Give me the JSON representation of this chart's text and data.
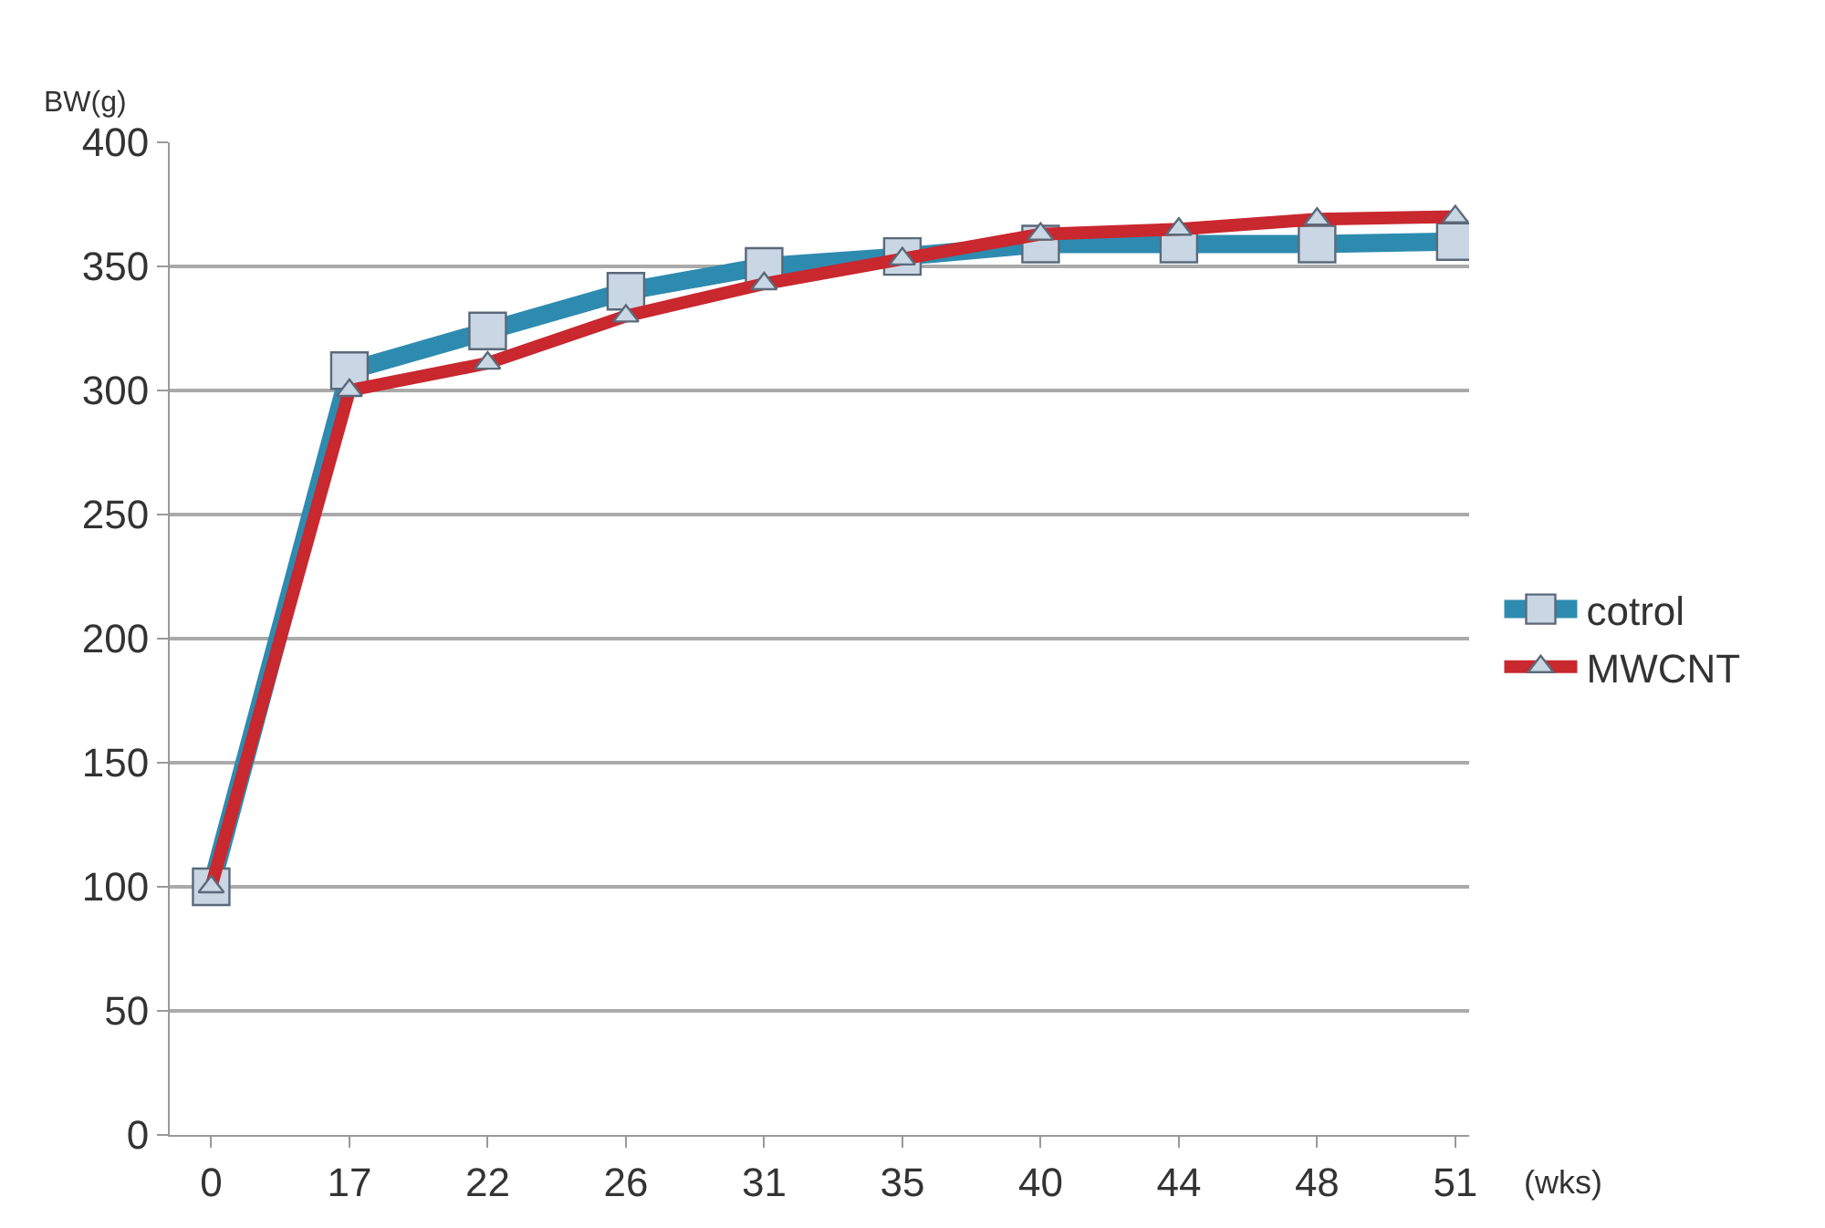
{
  "chart_data": {
    "type": "line",
    "ylabel": "BW(g)",
    "xlabel": "(wks)",
    "categories": [
      "0",
      "17",
      "22",
      "26",
      "31",
      "35",
      "40",
      "44",
      "48",
      "51"
    ],
    "series": [
      {
        "name": "cotrol",
        "color": "#2e8bb0",
        "marker": "square",
        "values": [
          100,
          308,
          324,
          340,
          350,
          354,
          359,
          359,
          359,
          360
        ]
      },
      {
        "name": "MWCNT",
        "color": "#c8282e",
        "marker": "triangle",
        "values": [
          100,
          300,
          311,
          330,
          343,
          353,
          363,
          365,
          369,
          370
        ]
      }
    ],
    "ylim": [
      0,
      400
    ],
    "yticks": [
      0,
      50,
      100,
      150,
      200,
      250,
      300,
      350,
      400
    ],
    "grid": "y",
    "legend": "right",
    "line_style": "solid"
  }
}
